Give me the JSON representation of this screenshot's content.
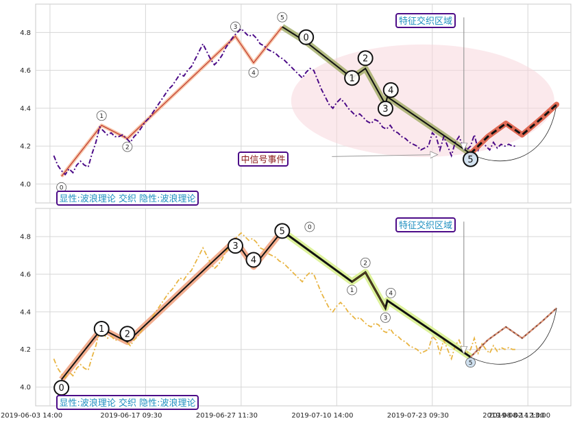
{
  "chart_data": [
    {
      "type": "line",
      "panel": "top",
      "ylim": [
        3.9,
        4.95
      ],
      "yticks": [
        "4.0",
        "4.2",
        "4.4",
        "4.6",
        "4.8"
      ],
      "grid": true,
      "price_series": {
        "color": "#4b0a87",
        "style": "dash-dot",
        "x": [
          0.4,
          0.8,
          1.2,
          1.6,
          2,
          2.4,
          2.8,
          3.2,
          3.6,
          4,
          4.4,
          4.8,
          5.2,
          5.6,
          6,
          6.4,
          6.8,
          7.2,
          7.6,
          8,
          8.4,
          8.8,
          9.2,
          9.6,
          10,
          10.4,
          10.8,
          11.2,
          11.6,
          12,
          12.4,
          12.8,
          13.2,
          13.6,
          14,
          14.4,
          14.8,
          15.2,
          15.6,
          16,
          16.4,
          16.8,
          17.2,
          17.6,
          18,
          18.4,
          18.8,
          19.2,
          19.6,
          20,
          20.4,
          20.8,
          21.2,
          21.6,
          22,
          22.4,
          22.8,
          23.2,
          23.6,
          24,
          24.4,
          24.8,
          25.2,
          25.6,
          26,
          26.4,
          26.8,
          27.2,
          27.6,
          28,
          28.4,
          28.8,
          29.2,
          29.6,
          30,
          30.4,
          30.8,
          31.2,
          31.6,
          32,
          32.4,
          32.8,
          33.2,
          33.6,
          34,
          34.4,
          34.8,
          35.2,
          35.6,
          36,
          36.4,
          36.8,
          37.2,
          37.6,
          38,
          38.4,
          38.8,
          39.2,
          39.6,
          40,
          40.4,
          40.8,
          41.2,
          41.6,
          42,
          42.4,
          42.8,
          43.2,
          43.6,
          44,
          44.4,
          44.8,
          45.2,
          45.6,
          46,
          46.4,
          46.8,
          47.2,
          47.6,
          48,
          48.4,
          48.8
        ],
        "y": [
          4.15,
          4.1,
          4.07,
          4.05,
          4.08,
          4.06,
          4.1,
          4.12,
          4.1,
          4.09,
          4.16,
          4.22,
          4.3,
          4.28,
          4.26,
          4.27,
          4.25,
          4.25,
          4.26,
          4.24,
          4.22,
          4.25,
          4.27,
          4.3,
          4.33,
          4.35,
          4.38,
          4.41,
          4.44,
          4.47,
          4.5,
          4.52,
          4.55,
          4.58,
          4.57,
          4.6,
          4.62,
          4.66,
          4.7,
          4.74,
          4.7,
          4.66,
          4.63,
          4.65,
          4.68,
          4.72,
          4.75,
          4.78,
          4.8,
          4.82,
          4.8,
          4.78,
          4.79,
          4.77,
          4.74,
          4.73,
          4.71,
          4.7,
          4.69,
          4.67,
          4.66,
          4.64,
          4.62,
          4.6,
          4.58,
          4.56,
          4.59,
          4.61,
          4.6,
          4.55,
          4.5,
          4.46,
          4.42,
          4.4,
          4.43,
          4.45,
          4.43,
          4.4,
          4.38,
          4.36,
          4.37,
          4.35,
          4.33,
          4.32,
          4.34,
          4.33,
          4.3,
          4.29,
          4.31,
          4.28,
          4.27,
          4.25,
          4.24,
          4.22,
          4.21,
          4.2,
          4.18,
          4.19,
          4.2,
          4.27,
          4.25,
          4.18,
          4.25,
          4.2,
          4.15,
          4.22,
          4.25,
          4.2,
          4.18,
          4.2,
          4.26,
          4.18,
          4.23,
          4.2,
          4.18,
          4.22,
          4.19,
          4.21,
          4.2,
          4.21,
          4.2,
          4.2
        ]
      },
      "wave_points": [
        {
          "x": 1.2,
          "y": 4.04,
          "label": "0",
          "size": "small"
        },
        {
          "x": 5.4,
          "y": 4.31,
          "label": "1",
          "size": "small"
        },
        {
          "x": 8.1,
          "y": 4.24,
          "label": "2",
          "size": "small"
        },
        {
          "x": 19.4,
          "y": 4.78,
          "label": "3",
          "size": "small"
        },
        {
          "x": 21.3,
          "y": 4.64,
          "label": "4",
          "size": "small"
        },
        {
          "x": 24.3,
          "y": 4.83,
          "label": "5",
          "size": "small"
        },
        {
          "x": 26.8,
          "y": 4.75,
          "label": "0",
          "size": "large"
        },
        {
          "x": 31.6,
          "y": 4.56,
          "label": "1",
          "size": "large"
        },
        {
          "x": 33.0,
          "y": 4.61,
          "label": "2",
          "size": "large"
        },
        {
          "x": 35.1,
          "y": 4.42,
          "label": "3",
          "size": "large"
        },
        {
          "x": 35.3,
          "y": 4.46,
          "label": "4",
          "size": "large"
        },
        {
          "x": 44.0,
          "y": 4.16,
          "label": "5",
          "size": "large"
        }
      ],
      "forecast": {
        "x": [
          44.0,
          45.8,
          47.7,
          49.4,
          51.5,
          53.0
        ],
        "y": [
          4.16,
          4.25,
          4.32,
          4.26,
          4.35,
          4.42
        ]
      },
      "annotations": {
        "signal": "中信号事件",
        "zone": "特征交织区域",
        "legend": "显性:波浪理论 交织 隐性:波浪理论"
      }
    },
    {
      "type": "line",
      "panel": "bottom",
      "ylim": [
        3.9,
        4.95
      ],
      "yticks": [
        "4.0",
        "4.2",
        "4.4",
        "4.6",
        "4.8"
      ],
      "grid": true,
      "xtick_labels": [
        "2019-06-03 14:00",
        "2019-06-17 09:30",
        "2019-06-27 11:30",
        "2019-07-10 14:00",
        "2019-07-23 09:30",
        "2019-08-02 12:00",
        "2019-08-14 13:00"
      ],
      "price_series": {
        "color": "#e8b441",
        "style": "dash-dot",
        "x": [
          0.4,
          0.8,
          1.2,
          1.6,
          2,
          2.4,
          2.8,
          3.2,
          3.6,
          4,
          4.4,
          4.8,
          5.2,
          5.6,
          6,
          6.4,
          6.8,
          7.2,
          7.6,
          8,
          8.4,
          8.8,
          9.2,
          9.6,
          10,
          10.4,
          10.8,
          11.2,
          11.6,
          12,
          12.4,
          12.8,
          13.2,
          13.6,
          14,
          14.4,
          14.8,
          15.2,
          15.6,
          16,
          16.4,
          16.8,
          17.2,
          17.6,
          18,
          18.4,
          18.8,
          19.2,
          19.6,
          20,
          20.4,
          20.8,
          21.2,
          21.6,
          22,
          22.4,
          22.8,
          23.2,
          23.6,
          24,
          24.4,
          24.8,
          25.2,
          25.6,
          26,
          26.4,
          26.8,
          27.2,
          27.6,
          28,
          28.4,
          28.8,
          29.2,
          29.6,
          30,
          30.4,
          30.8,
          31.2,
          31.6,
          32,
          32.4,
          32.8,
          33.2,
          33.6,
          34,
          34.4,
          34.8,
          35.2,
          35.6,
          36,
          36.4,
          36.8,
          37.2,
          37.6,
          38,
          38.4,
          38.8,
          39.2,
          39.6,
          40,
          40.4,
          40.8,
          41.2,
          41.6,
          42,
          42.4,
          42.8,
          43.2,
          43.6,
          44,
          44.4,
          44.8,
          45.2,
          45.6,
          46,
          46.4,
          46.8,
          47.2,
          47.6,
          48,
          48.4,
          48.8
        ],
        "y": [
          4.15,
          4.1,
          4.07,
          4.05,
          4.08,
          4.06,
          4.1,
          4.12,
          4.1,
          4.09,
          4.16,
          4.22,
          4.3,
          4.28,
          4.26,
          4.27,
          4.25,
          4.25,
          4.26,
          4.24,
          4.22,
          4.25,
          4.27,
          4.3,
          4.33,
          4.35,
          4.38,
          4.41,
          4.44,
          4.47,
          4.5,
          4.52,
          4.55,
          4.58,
          4.57,
          4.6,
          4.62,
          4.66,
          4.7,
          4.74,
          4.7,
          4.66,
          4.63,
          4.65,
          4.68,
          4.72,
          4.75,
          4.78,
          4.8,
          4.82,
          4.8,
          4.78,
          4.79,
          4.77,
          4.74,
          4.73,
          4.71,
          4.7,
          4.69,
          4.67,
          4.66,
          4.64,
          4.62,
          4.6,
          4.58,
          4.56,
          4.59,
          4.61,
          4.6,
          4.55,
          4.5,
          4.46,
          4.42,
          4.4,
          4.43,
          4.45,
          4.43,
          4.4,
          4.38,
          4.36,
          4.37,
          4.35,
          4.33,
          4.32,
          4.34,
          4.33,
          4.3,
          4.29,
          4.31,
          4.28,
          4.27,
          4.25,
          4.24,
          4.22,
          4.21,
          4.2,
          4.18,
          4.19,
          4.2,
          4.27,
          4.25,
          4.18,
          4.25,
          4.2,
          4.15,
          4.22,
          4.25,
          4.2,
          4.18,
          4.2,
          4.26,
          4.18,
          4.23,
          4.2,
          4.18,
          4.22,
          4.19,
          4.21,
          4.2,
          4.21,
          4.2,
          4.2
        ]
      },
      "wave_points": [
        {
          "x": 1.2,
          "y": 4.04,
          "label": "0",
          "size": "large"
        },
        {
          "x": 5.4,
          "y": 4.31,
          "label": "1",
          "size": "large"
        },
        {
          "x": 8.1,
          "y": 4.24,
          "label": "2",
          "size": "large"
        },
        {
          "x": 19.4,
          "y": 4.78,
          "label": "3",
          "size": "large"
        },
        {
          "x": 21.3,
          "y": 4.64,
          "label": "4",
          "size": "large"
        },
        {
          "x": 24.3,
          "y": 4.83,
          "label": "5",
          "size": "large"
        },
        {
          "x": 24.3,
          "y": 4.83,
          "label": "0",
          "size": "small"
        },
        {
          "x": 31.6,
          "y": 4.56,
          "label": "1",
          "size": "small"
        },
        {
          "x": 33.0,
          "y": 4.61,
          "label": "2",
          "size": "small"
        },
        {
          "x": 35.1,
          "y": 4.42,
          "label": "3",
          "size": "small"
        },
        {
          "x": 35.3,
          "y": 4.46,
          "label": "4",
          "size": "small"
        },
        {
          "x": 44.0,
          "y": 4.16,
          "label": "5",
          "size": "small"
        }
      ],
      "forecast": {
        "x": [
          44.0,
          45.8,
          47.7,
          49.4,
          51.5,
          53.0
        ],
        "y": [
          4.16,
          4.25,
          4.32,
          4.26,
          4.35,
          4.42
        ]
      },
      "annotations": {
        "zone": "特征交织区域",
        "legend": "显性:波浪理论 交织 隐性:波浪理论"
      }
    }
  ]
}
